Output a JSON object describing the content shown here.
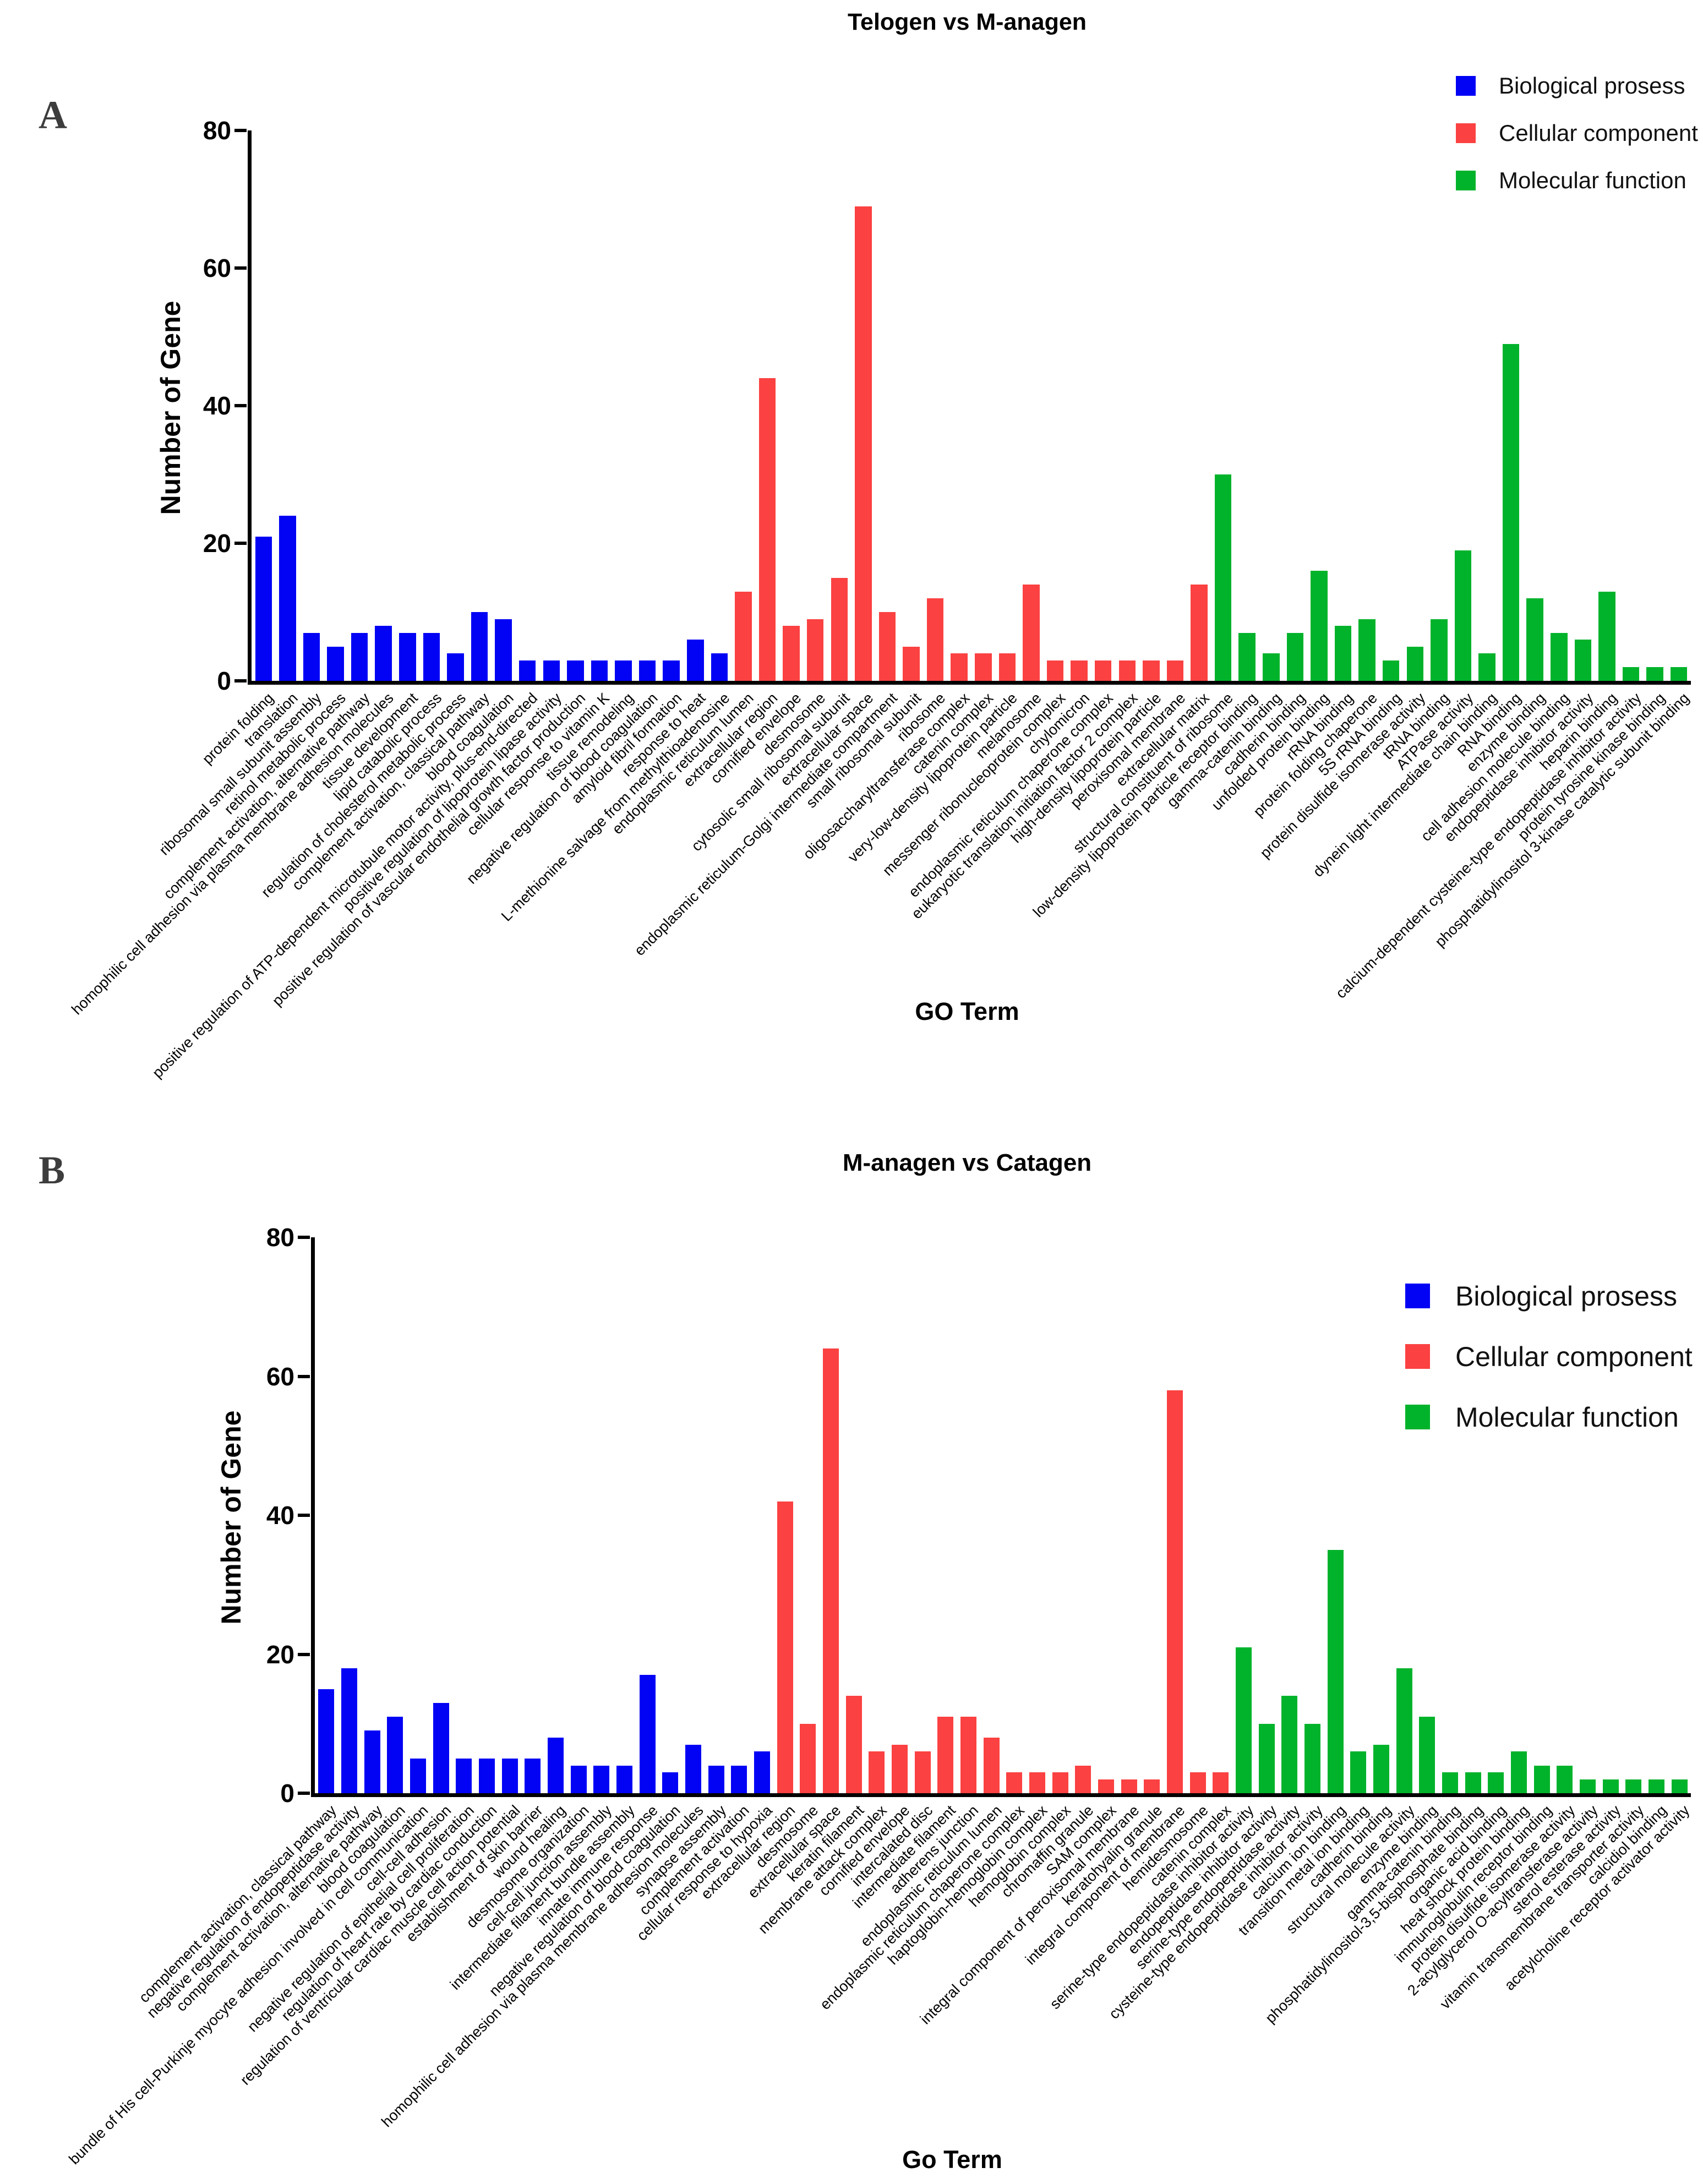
{
  "page": {
    "panel_a_label": "A",
    "panel_b_label": "B"
  },
  "chart_data": [
    {
      "type": "bar",
      "title": "Telogen vs M-anagen",
      "xlabel": "GO Term",
      "ylabel": "Number of Gene",
      "ylim": [
        0,
        80
      ],
      "yticks": [
        0,
        20,
        40,
        60,
        80
      ],
      "grid": false,
      "legend_position": "top-right",
      "series": [
        {
          "name": "Biological prosess",
          "color": "#0202f5",
          "categories": [
            "protein folding",
            "translation",
            "ribosomal small subunit assembly",
            "retinol metabolic process",
            "complement activation, alternative pathway",
            "homophilic cell adhesion via plasma membrane adhesion molecules",
            "tissue development",
            "lipid catabolic process",
            "regulation of cholesterol metabolic process",
            "complement activation, classical pathway",
            "blood coagulation",
            "positive regulation of ATP-dependent microtubule motor activity, plus-end-directed",
            "positive regulation of lipoprotein lipase activity",
            "positive regulation of vascular endothelial growth factor production",
            "cellular response to vitamin K",
            "tissue remodeling",
            "negative regulation of blood coagulation",
            "amyloid fibril formation",
            "response to heat",
            "L-methionine salvage from methylthioadenosine"
          ],
          "values": [
            21,
            24,
            7,
            5,
            7,
            8,
            7,
            7,
            4,
            10,
            9,
            3,
            3,
            3,
            3,
            3,
            3,
            3,
            6,
            4
          ]
        },
        {
          "name": "Cellular component",
          "color": "#fb4141",
          "categories": [
            "endoplasmic reticulum lumen",
            "extracellular region",
            "cornified envelope",
            "desmosome",
            "cytosolic small ribosomal subunit",
            "extracellular space",
            "endoplasmic reticulum-Golgi intermediate compartment",
            "small ribosomal subunit",
            "ribosome",
            "oligosaccharyltransferase complex",
            "catenin complex",
            "very-low-density lipoprotein particle",
            "melanosome",
            "messenger ribonucleoprotein complex",
            "chylomicron",
            "endoplasmic reticulum chaperone complex",
            "eukaryotic translation initiation factor 2 complex",
            "high-density lipoprotein particle",
            "peroxisomal membrane",
            "extracellular matrix"
          ],
          "values": [
            13,
            44,
            8,
            9,
            15,
            69,
            10,
            5,
            12,
            4,
            4,
            4,
            14,
            3,
            3,
            3,
            3,
            3,
            3,
            14
          ]
        },
        {
          "name": "Molecular function",
          "color": "#01b32b",
          "categories": [
            "structural constituent of ribosome",
            "low-density lipoprotein particle receptor binding",
            "gamma-catenin binding",
            "cadherin binding",
            "unfolded protein binding",
            "rRNA binding",
            "protein folding chaperone",
            "5S rRNA binding",
            "protein disulfide isomerase activity",
            "tRNA binding",
            "ATPase activity",
            "dynein light intermediate chain binding",
            "RNA binding",
            "enzyme binding",
            "cell adhesion molecule binding",
            "endopeptidase inhibitor activity",
            "heparin binding",
            "calcium-dependent cysteine-type endopeptidase inhibitor activity",
            "protein tyrosine kinase binding",
            "phosphatidylinositol 3-kinase catalytic subunit binding"
          ],
          "values": [
            30,
            7,
            4,
            7,
            16,
            8,
            9,
            3,
            5,
            9,
            19,
            4,
            49,
            12,
            7,
            6,
            13,
            2,
            2,
            2
          ]
        }
      ]
    },
    {
      "type": "bar",
      "title": "M-anagen vs Catagen",
      "xlabel": "Go Term",
      "ylabel": "Number of Gene",
      "ylim": [
        0,
        80
      ],
      "yticks": [
        0,
        20,
        40,
        60,
        80
      ],
      "grid": false,
      "legend_position": "right",
      "series": [
        {
          "name": "Biological prosess",
          "color": "#0202f5",
          "categories": [
            "complement activation, classical pathway",
            "negative regulation of endopeptidase activity",
            "complement activation, alternative pathway",
            "blood coagulation",
            "bundle of His cell-Purkinje myocyte adhesion involved in cell communication",
            "cell-cell adhesion",
            "negative regulation of epithelial cell proliferation",
            "regulation of heart rate by cardiac conduction",
            "regulation of ventricular cardiac muscle cell action potential",
            "establishment of skin barrier",
            "wound healing",
            "desmosome organization",
            "cell-cell junction assembly",
            "intermediate filament bundle assembly",
            "innate immune response",
            "negative regulation of blood coagulation",
            "homophilic cell adhesion via plasma membrane adhesion molecules",
            "synapse assembly",
            "complement activation",
            "cellular response to hypoxia"
          ],
          "values": [
            15,
            18,
            9,
            11,
            5,
            13,
            5,
            5,
            5,
            5,
            8,
            4,
            4,
            4,
            17,
            3,
            7,
            4,
            4,
            6
          ]
        },
        {
          "name": "Cellular component",
          "color": "#fb4141",
          "categories": [
            "extracellular region",
            "desmosome",
            "extracellular space",
            "keratin filament",
            "membrane attack complex",
            "cornified envelope",
            "intercalated disc",
            "intermediate filament",
            "adherens junction",
            "endoplasmic reticulum lumen",
            "endoplasmic reticulum chaperone complex",
            "haptoglobin-hemoglobin complex",
            "hemoglobin complex",
            "chromaffin granule",
            "SAM complex",
            "integral component of peroxisomal membrane",
            "keratohyalin granule",
            "integral component of membrane",
            "hemidesmosome",
            "catenin complex"
          ],
          "values": [
            42,
            10,
            64,
            14,
            6,
            7,
            6,
            11,
            11,
            8,
            3,
            3,
            3,
            4,
            2,
            2,
            2,
            58,
            3,
            3
          ]
        },
        {
          "name": "Molecular function",
          "color": "#01b32b",
          "categories": [
            "serine-type endopeptidase inhibitor activity",
            "endopeptidase inhibitor activity",
            "serine-type endopeptidase activity",
            "cysteine-type endopeptidase inhibitor activity",
            "calcium ion binding",
            "transition metal ion binding",
            "cadherin binding",
            "structural molecule activity",
            "enzyme binding",
            "gamma-catenin binding",
            "phosphatidylinositol-3,5-bisphosphate binding",
            "organic acid binding",
            "heat shock protein binding",
            "immunoglobulin receptor binding",
            "protein disulfide isomerase activity",
            "2-acylglycerol O-acyltransferase activity",
            "sterol esterase activity",
            "vitamin transmembrane transporter activity",
            "calcidiol binding",
            "acetylcholine receptor activator activity"
          ],
          "values": [
            21,
            10,
            14,
            10,
            35,
            6,
            7,
            18,
            11,
            3,
            3,
            3,
            6,
            4,
            4,
            2,
            2,
            2,
            2,
            2
          ]
        }
      ]
    }
  ]
}
